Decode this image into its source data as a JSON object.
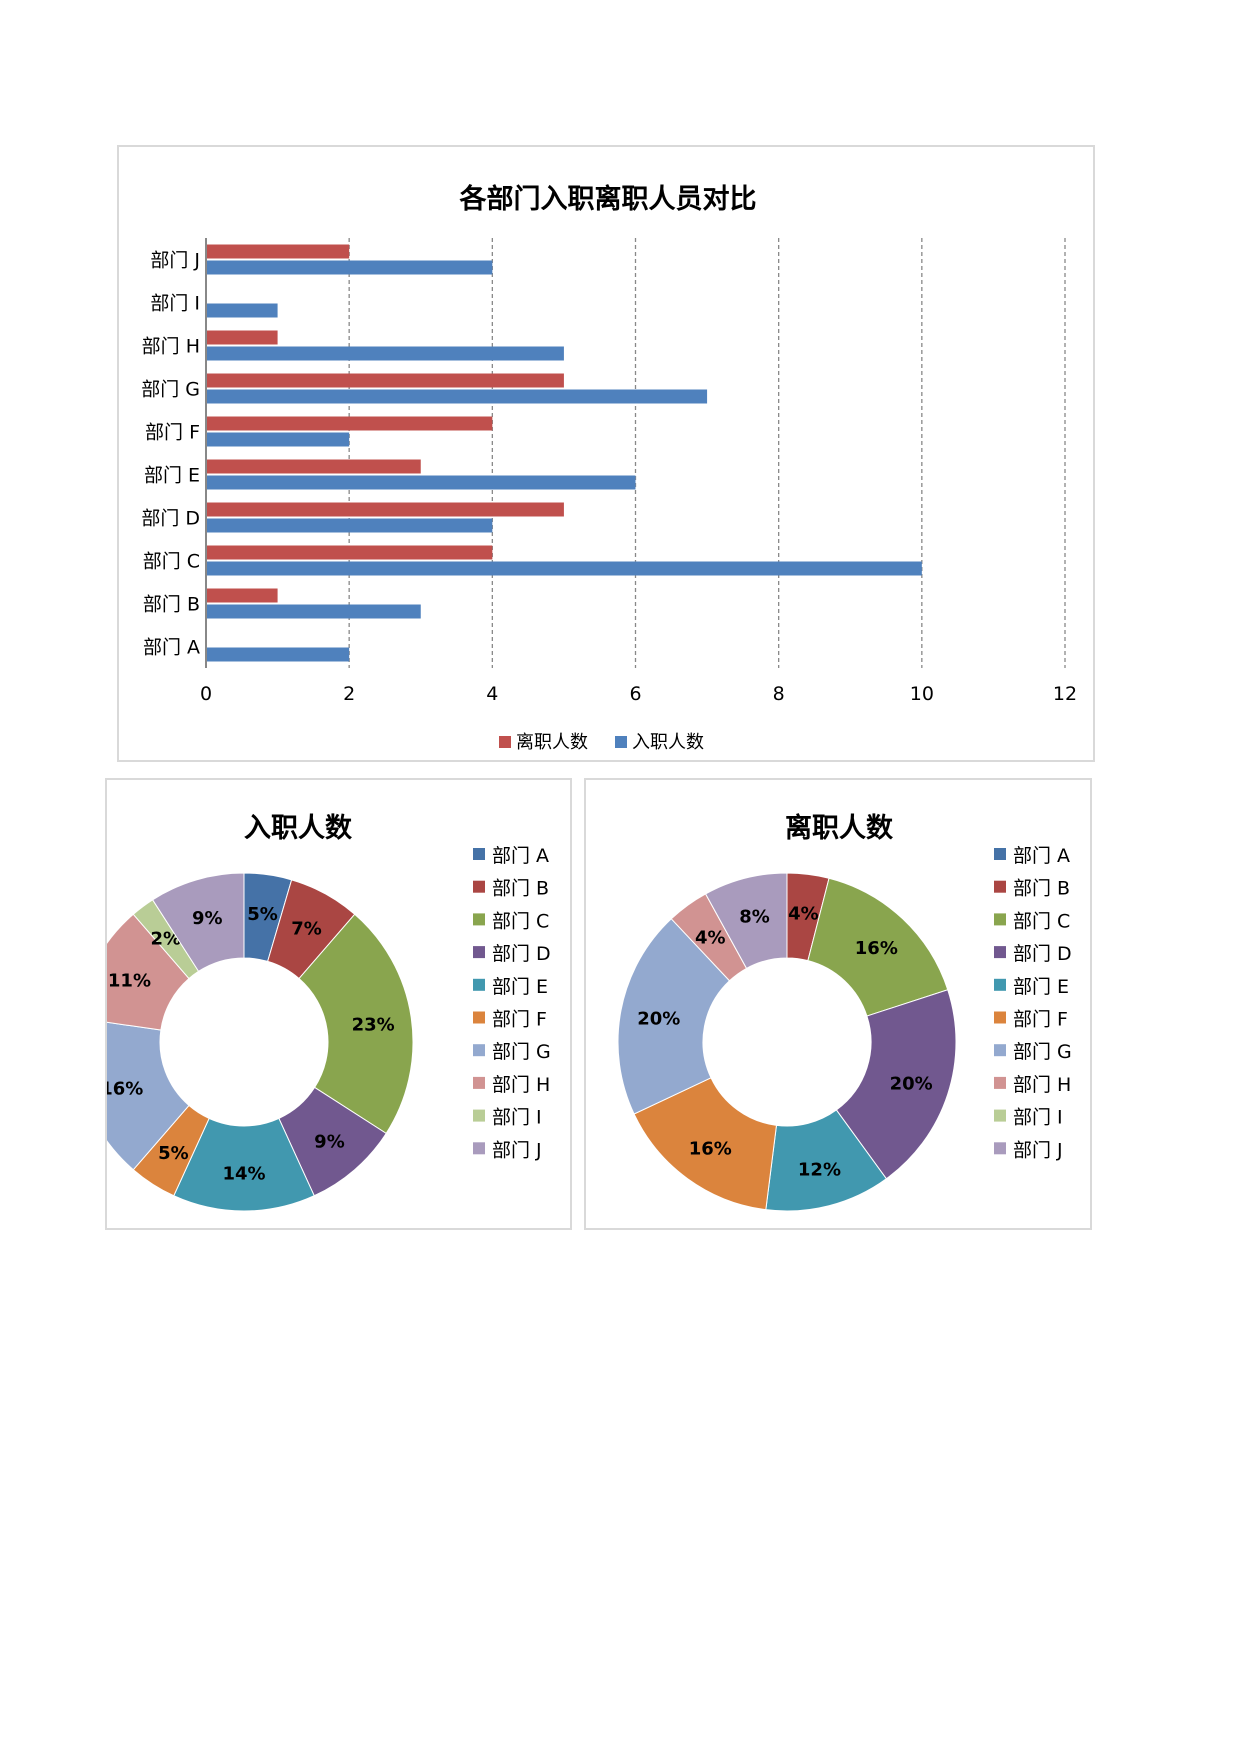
{
  "chart_data": [
    {
      "type": "bar",
      "orientation": "horizontal",
      "title": "各部门入职离职人员对比",
      "categories": [
        "部门 A",
        "部门 B",
        "部门 C",
        "部门 D",
        "部门 E",
        "部门 F",
        "部门 G",
        "部门 H",
        "部门 I",
        "部门 J"
      ],
      "series": [
        {
          "name": "离职人数",
          "color": "#C0504D",
          "values": [
            0,
            1,
            4,
            5,
            3,
            4,
            5,
            1,
            0,
            2
          ]
        },
        {
          "name": "入职人数",
          "color": "#4F81BD",
          "values": [
            2,
            3,
            10,
            4,
            6,
            2,
            7,
            5,
            1,
            4
          ]
        }
      ],
      "xlim": [
        0,
        12
      ],
      "xticks": [
        "0",
        "2",
        "4",
        "6",
        "8",
        "10",
        "12"
      ],
      "grid": "vertical dashed",
      "legend": "bottom"
    },
    {
      "type": "pie",
      "style": "donut",
      "title": "入职人数",
      "categories": [
        "部门 A",
        "部门 B",
        "部门 C",
        "部门 D",
        "部门 E",
        "部门 F",
        "部门 G",
        "部门 H",
        "部门 I",
        "部门 J"
      ],
      "values": [
        2,
        3,
        10,
        4,
        6,
        2,
        7,
        5,
        1,
        4
      ],
      "labels": [
        "5%",
        "7%",
        "23%",
        "9%",
        "14%",
        "5%",
        "16%",
        "11%",
        "2%",
        "9%"
      ],
      "legend": "right"
    },
    {
      "type": "pie",
      "style": "donut",
      "title": "离职人数",
      "categories": [
        "部门 A",
        "部门 B",
        "部门 C",
        "部门 D",
        "部门 E",
        "部门 F",
        "部门 G",
        "部门 H",
        "部门 I",
        "部门 J"
      ],
      "values": [
        0,
        1,
        4,
        5,
        3,
        4,
        5,
        1,
        0,
        2
      ],
      "labels": [
        "",
        "4%",
        "16%",
        "20%",
        "12%",
        "16%",
        "20%",
        "4%",
        "",
        "8%"
      ],
      "legend": "right"
    }
  ],
  "pie_colors": [
    "#4572A7",
    "#AA4643",
    "#89A54E",
    "#71588F",
    "#4198AF",
    "#DB843D",
    "#93A9CF",
    "#D19392",
    "#B9CD96",
    "#A99BBD"
  ]
}
